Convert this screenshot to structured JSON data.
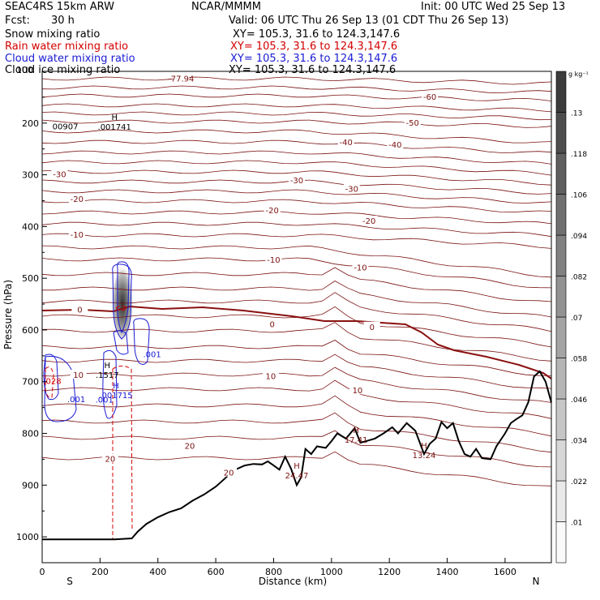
{
  "header": {
    "model": "SEAC4RS 15km ARW",
    "center": "NCAR/MMMM",
    "init": "Init: 00 UTC Wed 25 Sep 13",
    "fcst_label": "Fcst:",
    "fcst_value": "30 h",
    "valid": "Valid: 06 UTC Thu 26 Sep 13 (01 CDT Thu 26 Sep 13)"
  },
  "fields": [
    {
      "name": "Snow mixing ratio",
      "xy": "XY= 105.3, 31.6 to 124.3,147.6",
      "color": "#000000"
    },
    {
      "name": "Rain water mixing ratio",
      "xy": "XY= 105.3, 31.6 to 124.3,147.6",
      "color": "#d40000"
    },
    {
      "name": "Cloud water mixing ratio",
      "xy": "XY= 105.3, 31.6 to 124.3,147.6",
      "color": "#1a1ad4"
    },
    {
      "name": "Cloud ice mixing ratio",
      "xy": "XY= 105.3, 31.6 to 124.3,147.6",
      "color": "#000000"
    }
  ],
  "colors": {
    "temperature_contour": "#7a1010",
    "freezing_level": "#8a1010",
    "rain": "#d40000",
    "cloud_water": "#1a1ad4",
    "terrain": "#000000"
  },
  "chart_data": {
    "type": "heatmap",
    "xlabel": "Distance (km)",
    "ylabel": "Pressure (hPa)",
    "xlim": [
      0,
      1760
    ],
    "ylim": [
      1050,
      100
    ],
    "x_ticks": [
      0,
      200,
      400,
      600,
      800,
      1000,
      1200,
      1400,
      1600
    ],
    "y_ticks": [
      200,
      300,
      400,
      500,
      600,
      700,
      800,
      900,
      1000
    ],
    "y_top_label": "100",
    "endpoints": {
      "left": "S",
      "right": "N"
    },
    "colorbar": {
      "unit": "g kg⁻¹",
      "levels": [
        ".01",
        ".022",
        ".034",
        ".046",
        ".058",
        ".07",
        ".082",
        ".094",
        ".106",
        ".118",
        ".13"
      ]
    },
    "contour_labels": [
      {
        "text": "-77.94",
        "x": 480,
        "p": 115
      },
      {
        "text": "-60",
        "x": 1340,
        "p": 150
      },
      {
        "text": "-50",
        "x": 1280,
        "p": 200
      },
      {
        "text": "-40",
        "x": 1220,
        "p": 243
      },
      {
        "text": "-40",
        "x": 1050,
        "p": 238
      },
      {
        "text": "-30",
        "x": 60,
        "p": 300
      },
      {
        "text": "-30",
        "x": 880,
        "p": 312
      },
      {
        "text": "-30",
        "x": 1070,
        "p": 328
      },
      {
        "text": "-20",
        "x": 120,
        "p": 348
      },
      {
        "text": "-20",
        "x": 795,
        "p": 370
      },
      {
        "text": "-20",
        "x": 1130,
        "p": 390
      },
      {
        "text": "-10",
        "x": 120,
        "p": 417
      },
      {
        "text": "-10",
        "x": 800,
        "p": 465
      },
      {
        "text": "-10",
        "x": 1100,
        "p": 480
      },
      {
        "text": "0",
        "x": 130,
        "p": 562
      },
      {
        "text": "0",
        "x": 795,
        "p": 590
      },
      {
        "text": "0",
        "x": 1140,
        "p": 595
      },
      {
        "text": "10",
        "x": 125,
        "p": 688
      },
      {
        "text": "10",
        "x": 790,
        "p": 690
      },
      {
        "text": "10",
        "x": 1090,
        "p": 718
      },
      {
        "text": "20",
        "x": 510,
        "p": 825
      },
      {
        "text": "20",
        "x": 235,
        "p": 850
      },
      {
        "text": "20",
        "x": 645,
        "p": 877
      }
    ],
    "max_labels": [
      {
        "mark": "",
        "value": "00907",
        "x": 80,
        "p": 207
      },
      {
        "mark": "H",
        "value": ".001741",
        "x": 250,
        "p": 208
      },
      {
        "mark": "H",
        "value": ".1517",
        "x": 225,
        "p": 688
      },
      {
        "mark": "H",
        "value": ".001715",
        "x": 255,
        "p": 727
      },
      {
        "mark": "",
        "value": ".001",
        "x": 118,
        "p": 735
      },
      {
        "mark": "",
        "value": ".001",
        "x": 215,
        "p": 736
      },
      {
        "mark": "",
        "value": ".001",
        "x": 380,
        "p": 648
      },
      {
        "mark": "",
        "value": ".028",
        "x": 35,
        "p": 700
      },
      {
        "mark": "H",
        "value": "24.47",
        "x": 880,
        "p": 882
      },
      {
        "mark": "H",
        "value": "17.41",
        "x": 1085,
        "p": 813
      },
      {
        "mark": "H",
        "value": "13.24",
        "x": 1320,
        "p": 843
      }
    ],
    "terrain_profile": [
      [
        0,
        1005
      ],
      [
        150,
        1005
      ],
      [
        250,
        1005
      ],
      [
        310,
        1003
      ],
      [
        330,
        990
      ],
      [
        360,
        975
      ],
      [
        400,
        962
      ],
      [
        440,
        952
      ],
      [
        480,
        945
      ],
      [
        520,
        930
      ],
      [
        560,
        918
      ],
      [
        600,
        903
      ],
      [
        630,
        888
      ],
      [
        660,
        872
      ],
      [
        700,
        862
      ],
      [
        730,
        859
      ],
      [
        760,
        860
      ],
      [
        780,
        854
      ],
      [
        800,
        862
      ],
      [
        820,
        870
      ],
      [
        840,
        845
      ],
      [
        860,
        868
      ],
      [
        880,
        900
      ],
      [
        895,
        885
      ],
      [
        910,
        830
      ],
      [
        930,
        840
      ],
      [
        950,
        825
      ],
      [
        980,
        828
      ],
      [
        1000,
        815
      ],
      [
        1020,
        800
      ],
      [
        1050,
        810
      ],
      [
        1080,
        790
      ],
      [
        1100,
        818
      ],
      [
        1120,
        815
      ],
      [
        1150,
        810
      ],
      [
        1180,
        800
      ],
      [
        1210,
        788
      ],
      [
        1230,
        800
      ],
      [
        1260,
        780
      ],
      [
        1290,
        795
      ],
      [
        1320,
        840
      ],
      [
        1340,
        820
      ],
      [
        1360,
        810
      ],
      [
        1380,
        778
      ],
      [
        1400,
        790
      ],
      [
        1420,
        780
      ],
      [
        1440,
        815
      ],
      [
        1460,
        840
      ],
      [
        1480,
        845
      ],
      [
        1500,
        830
      ],
      [
        1520,
        848
      ],
      [
        1550,
        850
      ],
      [
        1570,
        825
      ],
      [
        1600,
        800
      ],
      [
        1620,
        780
      ],
      [
        1640,
        772
      ],
      [
        1660,
        765
      ],
      [
        1680,
        740
      ],
      [
        1700,
        690
      ],
      [
        1720,
        680
      ],
      [
        1740,
        700
      ],
      [
        1760,
        740
      ]
    ]
  }
}
